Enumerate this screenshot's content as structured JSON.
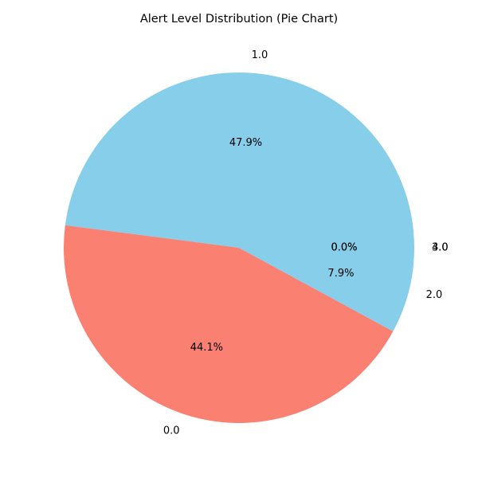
{
  "chart_data": {
    "type": "pie",
    "title": "Alert Level Distribution (Pie Chart)",
    "categories": [
      "1.0",
      "0.0",
      "2.0",
      "3.0",
      "4.0"
    ],
    "values": [
      47.9,
      44.1,
      7.9,
      0.0,
      0.0
    ],
    "pct_labels": [
      "47.9%",
      "44.1%",
      "7.9%",
      "0.0%",
      "0.0%"
    ],
    "colors": [
      "#87ceeb",
      "#fa8072",
      "#87ceeb",
      "#fa8072",
      "#87ceeb"
    ],
    "start_angle_deg": 0,
    "direction": "counterclockwise",
    "legend": "none"
  }
}
